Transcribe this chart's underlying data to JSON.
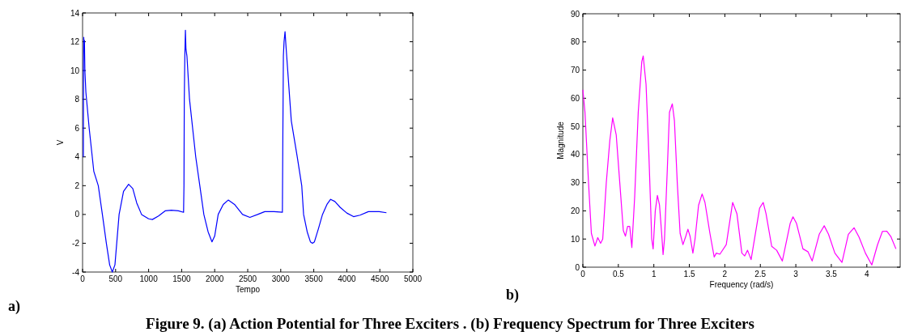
{
  "chart_data": [
    {
      "type": "line",
      "xlabel": "Tempo",
      "ylabel": "V",
      "xlim": [
        0,
        5000
      ],
      "ylim": [
        -4,
        14
      ],
      "xticks": [
        0,
        500,
        1000,
        1500,
        2000,
        2500,
        3000,
        3500,
        4000,
        4500,
        5000
      ],
      "yticks": [
        -4,
        -2,
        0,
        2,
        4,
        6,
        8,
        10,
        12,
        14
      ],
      "annotations": [
        "a)",
        "Figure 9. (a) Action Potential for Three Exciters . (b) Frequency Spectrum  for Three Exciters"
      ],
      "series": [
        {
          "color": "#0000ff",
          "x": [
            12,
            14,
            18,
            22,
            28,
            35,
            50,
            100,
            170,
            238,
            300,
            360,
            410,
            450,
            490,
            553,
            620,
            697,
            760,
            820,
            893,
            1000,
            1057,
            1150,
            1250,
            1344,
            1450,
            1529,
            1535,
            1540,
            1548,
            1557,
            1565,
            1580,
            1619,
            1713,
            1775,
            1836,
            1900,
            1959,
            2000,
            2053,
            2130,
            2205,
            2300,
            2422,
            2533,
            2650,
            2758,
            2900,
            3025,
            3032,
            3040,
            3050,
            3065,
            3075,
            3090,
            3160,
            3250,
            3318,
            3346,
            3400,
            3449,
            3480,
            3510,
            3570,
            3632,
            3700,
            3755,
            3820,
            3898,
            4000,
            4102,
            4200,
            4327,
            4490,
            4600
          ],
          "values": [
            4,
            10.5,
            12.3,
            11.5,
            12.1,
            10,
            8.5,
            6,
            3,
            2,
            0,
            -2,
            -3.5,
            -4,
            -3.5,
            0,
            1.6,
            2.1,
            1.8,
            0.8,
            0,
            -0.3,
            -0.35,
            -0.1,
            0.25,
            0.3,
            0.25,
            0.15,
            2,
            8,
            11,
            12.8,
            11.5,
            11,
            8,
            4,
            2,
            0,
            -1.2,
            -1.9,
            -1.5,
            0,
            0.7,
            1.0,
            0.7,
            0,
            -0.2,
            0,
            0.2,
            0.2,
            0.15,
            5.5,
            11,
            12,
            12.7,
            12,
            11,
            6.5,
            4,
            2,
            0,
            -1.2,
            -1.9,
            -2,
            -1.9,
            -1,
            0,
            0.7,
            1.05,
            0.9,
            0.5,
            0.1,
            -0.15,
            -0.05,
            0.2,
            0.2,
            0.12
          ]
        }
      ]
    },
    {
      "type": "line",
      "xlabel": "Frequency (rad/s)",
      "ylabel": "Magnitude",
      "xlim": [
        0,
        4.47
      ],
      "ylim": [
        0,
        90
      ],
      "xticks": [
        0,
        0.5,
        1,
        1.5,
        2,
        2.5,
        3,
        3.5,
        4
      ],
      "yticks": [
        0,
        10,
        20,
        30,
        40,
        50,
        60,
        70,
        80,
        90
      ],
      "annotations": [
        "b)"
      ],
      "series": [
        {
          "color": "#ff00ff",
          "x": [
            0,
            0.03,
            0.08,
            0.12,
            0.17,
            0.21,
            0.25,
            0.28,
            0.33,
            0.38,
            0.42,
            0.47,
            0.52,
            0.57,
            0.6,
            0.63,
            0.66,
            0.69,
            0.73,
            0.78,
            0.83,
            0.85,
            0.89,
            0.93,
            0.97,
            0.99,
            1.02,
            1.05,
            1.08,
            1.11,
            1.13,
            1.15,
            1.19,
            1.22,
            1.26,
            1.29,
            1.33,
            1.37,
            1.41,
            1.45,
            1.48,
            1.51,
            1.55,
            1.58,
            1.63,
            1.68,
            1.72,
            1.79,
            1.85,
            1.88,
            1.93,
            2.02,
            2.11,
            2.17,
            2.24,
            2.28,
            2.32,
            2.37,
            2.49,
            2.54,
            2.58,
            2.66,
            2.73,
            2.81,
            2.92,
            2.96,
            3.01,
            3.1,
            3.17,
            3.23,
            3.33,
            3.4,
            3.46,
            3.55,
            3.65,
            3.74,
            3.82,
            3.89,
            3.98,
            4.07,
            4.15,
            4.22,
            4.28,
            4.34,
            4.41
          ],
          "values": [
            63,
            55,
            30,
            12,
            7.5,
            10.5,
            8.5,
            10,
            30,
            45,
            53,
            47,
            30,
            13,
            11,
            14.5,
            14.5,
            7,
            25,
            55,
            73,
            75,
            65,
            40,
            10,
            6.5,
            20,
            25.5,
            22,
            12,
            4.5,
            10,
            35,
            55,
            58,
            52,
            30,
            12,
            8,
            11,
            13.5,
            11,
            5,
            10,
            22,
            26,
            23,
            12,
            3.6,
            5,
            4.6,
            8,
            23,
            19,
            5,
            4,
            6,
            2.7,
            21,
            23,
            19,
            7.4,
            6,
            2.2,
            15.5,
            17.9,
            15.5,
            6.5,
            5.5,
            2.2,
            11.7,
            14.7,
            11.7,
            5,
            1.7,
            11.7,
            14,
            10.7,
            5,
            0.8,
            7.9,
            12.7,
            12.8,
            10.8,
            6.5
          ]
        }
      ]
    }
  ]
}
